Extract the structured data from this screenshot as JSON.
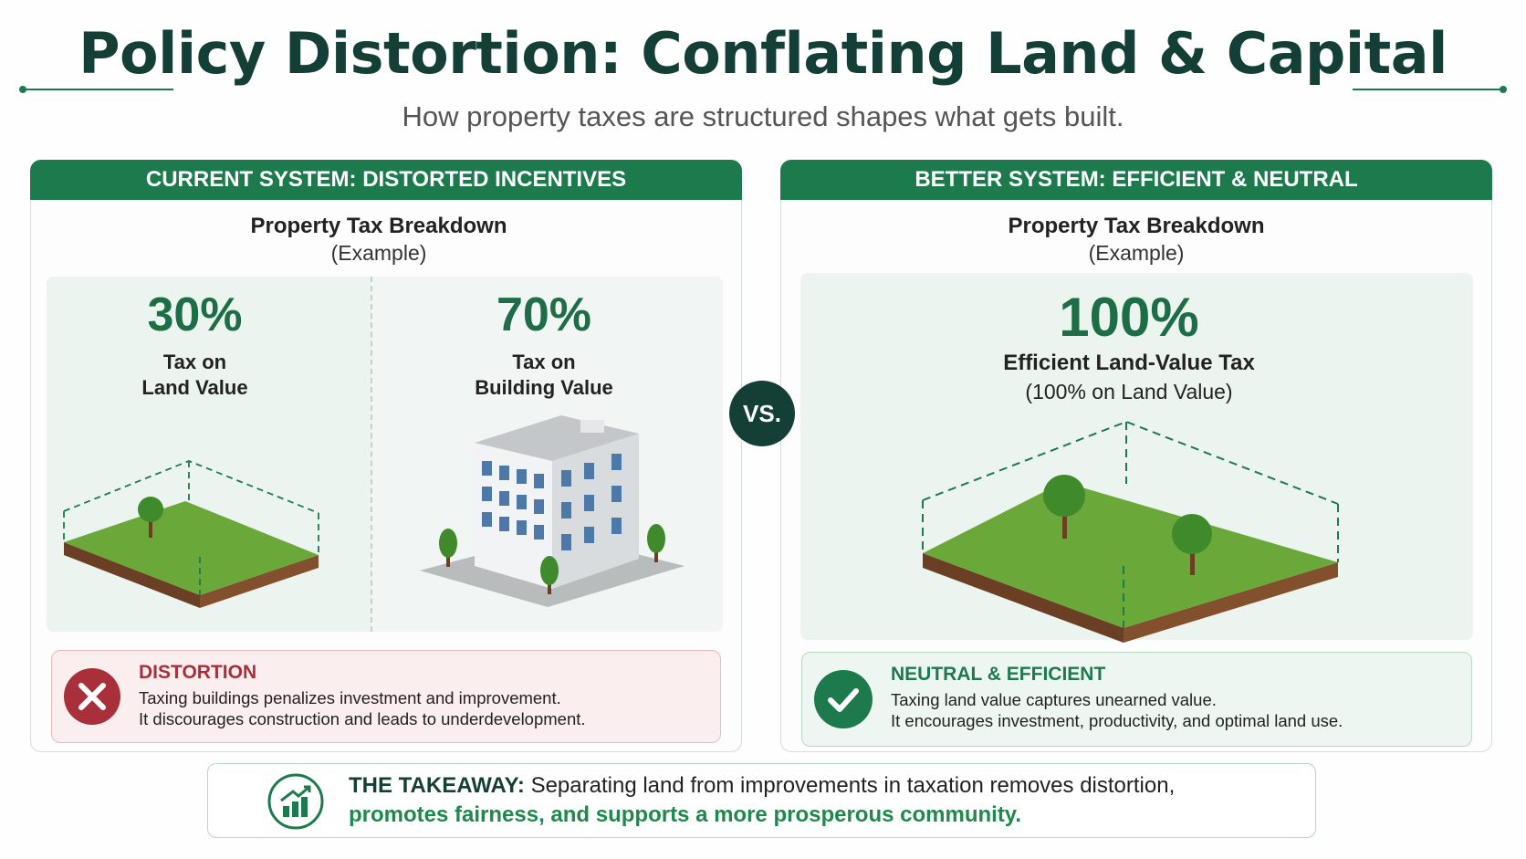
{
  "header": {
    "title": "Policy Distortion: Conflating Land & Capital",
    "subtitle": "How property taxes are structured shapes what gets built."
  },
  "panels": [
    {
      "heading": "CURRENT SYSTEM: DISTORTED INCENTIVES",
      "chart_title": "Property Tax Breakdown",
      "chart_subtitle": "(Example)",
      "items": [
        {
          "value": "30%",
          "label_lines": [
            "Tax on",
            "Land Value"
          ]
        },
        {
          "value": "70%",
          "label_lines": [
            "Tax on",
            "Building Value"
          ]
        }
      ],
      "note": {
        "title": "DISTORTION",
        "lines": [
          "Taxing buildings penalizes investment and improvement.",
          "It discourages construction and leads to underdevelopment."
        ]
      }
    },
    {
      "heading": "BETTER SYSTEM: EFFICIENT & NEUTRAL",
      "chart_title": "Property Tax Breakdown",
      "chart_subtitle": "(Example)",
      "items": [
        {
          "value": "100%",
          "label_lines": [
            "Efficient Land-Value Tax",
            "(100% on Land Value)"
          ]
        }
      ],
      "note": {
        "title": "NEUTRAL & EFFICIENT",
        "lines": [
          "Taxing land value captures unearned value.",
          "It encourages investment, productivity, and optimal land use."
        ]
      }
    }
  ],
  "vs": "VS.",
  "takeaway": {
    "label": "THE TAKEAWAY:",
    "line_1": "Separating land from improvements in taxation removes distortion,",
    "line_2": "promotes fairness, and supports a more prosperous community."
  }
}
